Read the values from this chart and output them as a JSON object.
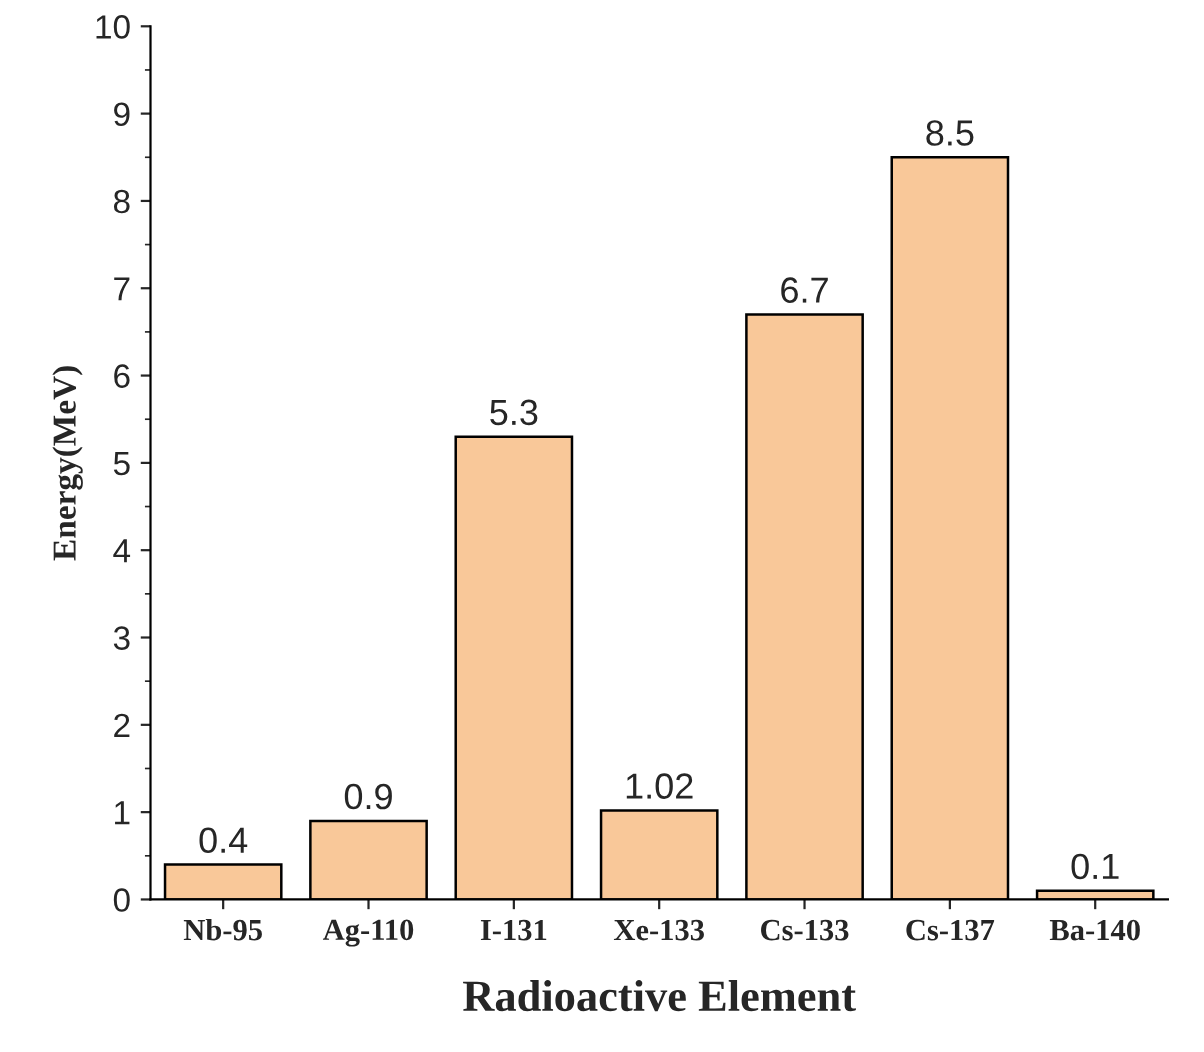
{
  "chart_data": {
    "type": "bar",
    "xlabel": "Radioactive Element",
    "ylabel": "Energy(MeV)",
    "categories": [
      "Nb-95",
      "Ag-110",
      "I-131",
      "Xe-133",
      "Cs-133",
      "Cs-137",
      "Ba-140"
    ],
    "values": [
      0.4,
      0.9,
      5.3,
      1.02,
      6.7,
      8.5,
      0.1
    ],
    "color": "#f9c899",
    "ylim": [
      0,
      10
    ],
    "yticks": [
      0,
      1,
      2,
      3,
      4,
      5,
      6,
      7,
      8,
      9,
      10
    ],
    "data_labels": true,
    "grid": false,
    "legend": false
  }
}
